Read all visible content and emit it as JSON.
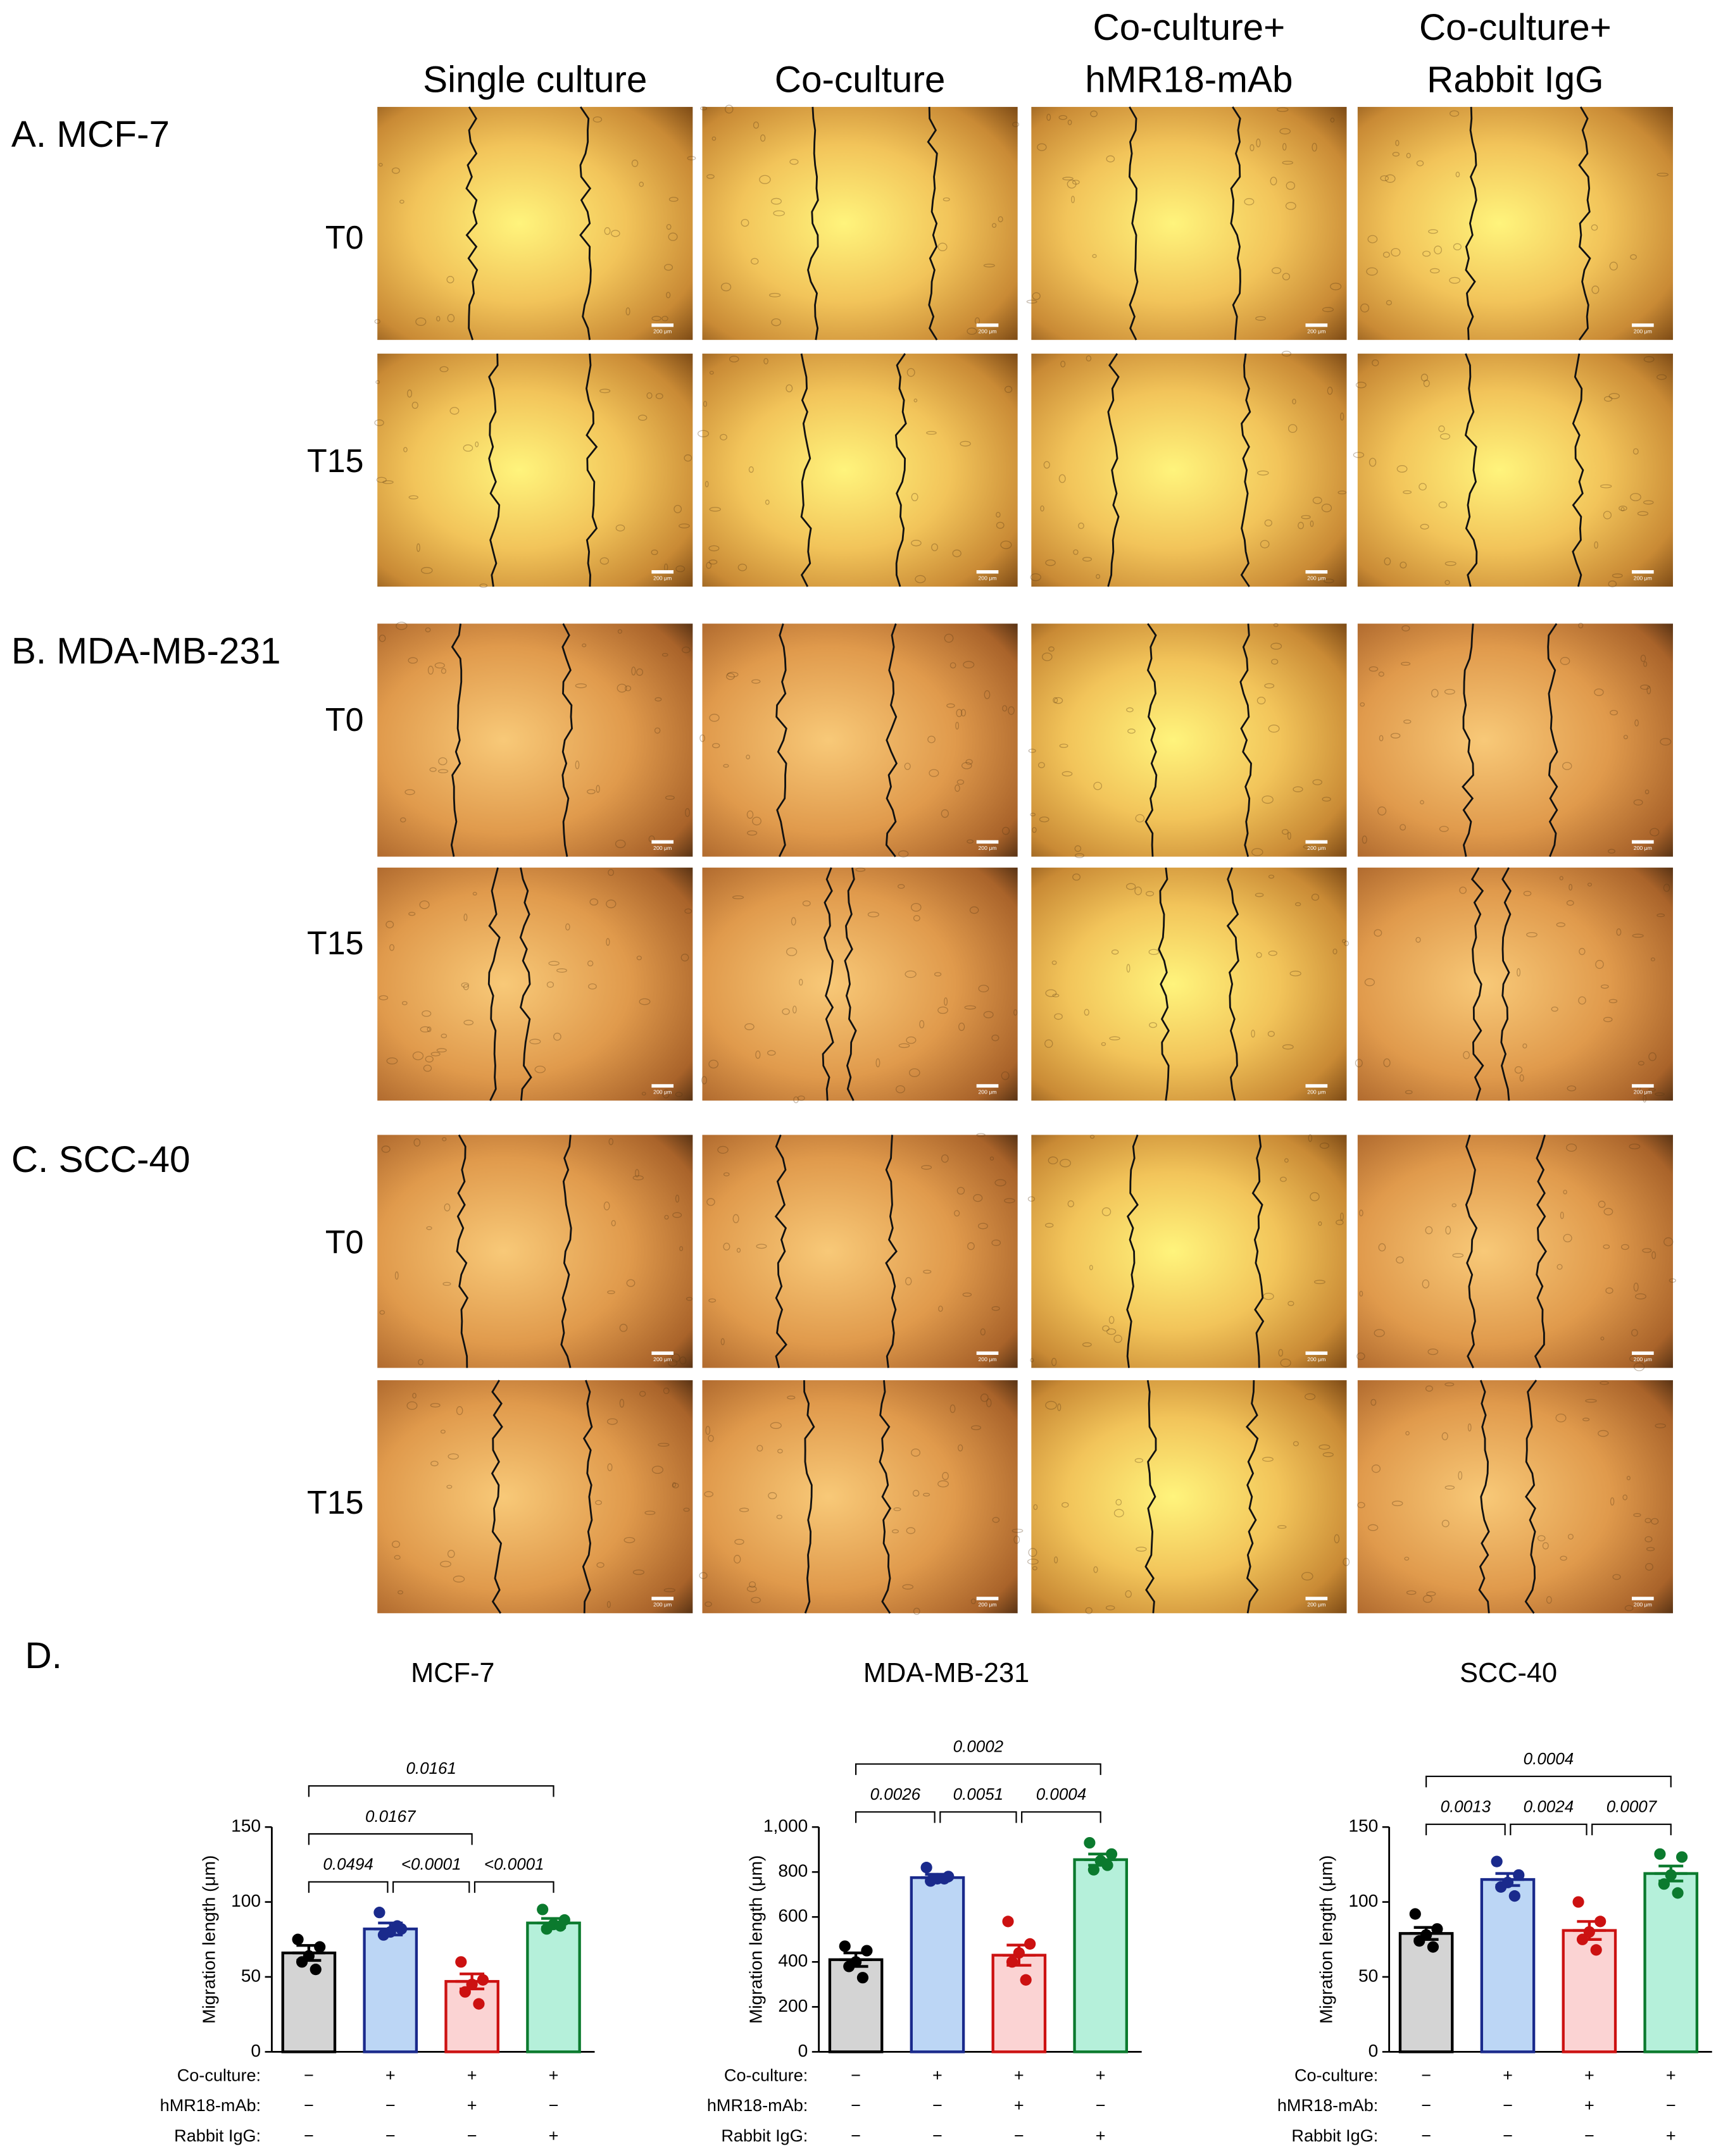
{
  "figure": {
    "column_headers": [
      [
        "Single culture"
      ],
      [
        "Co-culture"
      ],
      [
        "Co-culture+",
        "hMR18-mAb"
      ],
      [
        "Co-culture+",
        "Rabbit IgG"
      ]
    ],
    "sections": [
      {
        "label": "A. MCF-7",
        "rows": [
          "T0",
          "T15"
        ]
      },
      {
        "label": "B. MDA-MB-231",
        "rows": [
          "T0",
          "T15"
        ]
      },
      {
        "label": "C. SCC-40",
        "rows": [
          "T0",
          "T15"
        ]
      }
    ],
    "scale_bar": "200 μm",
    "panel_d_label": "D."
  },
  "chart_data": [
    {
      "type": "bar",
      "title": "MCF-7",
      "ylabel": "Migration length (μm)",
      "ylim": [
        0,
        150
      ],
      "yticks": [
        0,
        50,
        100,
        150
      ],
      "values": [
        66,
        82,
        47,
        86
      ],
      "errors": [
        5,
        4,
        5,
        3
      ],
      "points": [
        [
          75,
          70,
          64,
          60,
          55
        ],
        [
          93,
          82,
          80,
          78,
          84
        ],
        [
          60,
          48,
          45,
          40,
          32
        ],
        [
          95,
          88,
          85,
          82,
          84
        ]
      ],
      "colors": [
        "#000000",
        "#1a2a8c",
        "#cc1111",
        "#0b7a2e"
      ],
      "fill_colors": [
        "#d4d4d4",
        "#bcd6f5",
        "#fbd3d3",
        "#b5f0da"
      ],
      "conditions": [
        {
          "label": "Co-culture:",
          "marks": [
            "−",
            "+",
            "+",
            "+"
          ]
        },
        {
          "label": "hMR18-mAb:",
          "marks": [
            "−",
            "−",
            "+",
            "−"
          ]
        },
        {
          "label": "Rabbit IgG:",
          "marks": [
            "−",
            "−",
            "−",
            "+"
          ]
        }
      ],
      "comparisons": [
        {
          "from": 0,
          "to": 1,
          "label": "0.0494"
        },
        {
          "from": 1,
          "to": 2,
          "label": "<0.0001"
        },
        {
          "from": 2,
          "to": 3,
          "label": "<0.0001"
        },
        {
          "from": 0,
          "to": 2,
          "label": "0.0167"
        },
        {
          "from": 0,
          "to": 3,
          "label": "0.0161"
        }
      ]
    },
    {
      "type": "bar",
      "title": "MDA-MB-231",
      "ylabel": "Migration length (μm)",
      "ylim": [
        0,
        1000
      ],
      "yticks": [
        0,
        200,
        400,
        600,
        800,
        {
          "value": 1000,
          "label": "1,000"
        }
      ],
      "values": [
        410,
        775,
        430,
        855
      ],
      "errors": [
        30,
        15,
        45,
        25
      ],
      "points": [
        [
          470,
          450,
          400,
          380,
          330
        ],
        [
          820,
          780,
          770,
          760,
          770
        ],
        [
          580,
          480,
          440,
          400,
          320
        ],
        [
          930,
          880,
          850,
          810,
          830
        ]
      ],
      "colors": [
        "#000000",
        "#1a2a8c",
        "#cc1111",
        "#0b7a2e"
      ],
      "fill_colors": [
        "#d4d4d4",
        "#bcd6f5",
        "#fbd3d3",
        "#b5f0da"
      ],
      "conditions": [
        {
          "label": "Co-culture:",
          "marks": [
            "−",
            "+",
            "+",
            "+"
          ]
        },
        {
          "label": "hMR18-mAb:",
          "marks": [
            "−",
            "−",
            "+",
            "−"
          ]
        },
        {
          "label": "Rabbit IgG:",
          "marks": [
            "−",
            "−",
            "−",
            "+"
          ]
        }
      ],
      "comparisons": [
        {
          "from": 0,
          "to": 1,
          "label": "0.0026"
        },
        {
          "from": 1,
          "to": 2,
          "label": "0.0051"
        },
        {
          "from": 2,
          "to": 3,
          "label": "0.0004"
        },
        {
          "from": 0,
          "to": 3,
          "label": "0.0002"
        }
      ]
    },
    {
      "type": "bar",
      "title": "SCC-40",
      "ylabel": "Migration length (μm)",
      "ylim": [
        0,
        150
      ],
      "yticks": [
        0,
        50,
        100,
        150
      ],
      "values": [
        79,
        115,
        81,
        119
      ],
      "errors": [
        4,
        4,
        6,
        5
      ],
      "points": [
        [
          92,
          82,
          78,
          74,
          70
        ],
        [
          127,
          118,
          113,
          110,
          104
        ],
        [
          100,
          87,
          80,
          75,
          68
        ],
        [
          132,
          130,
          118,
          112,
          106
        ]
      ],
      "colors": [
        "#000000",
        "#1a2a8c",
        "#cc1111",
        "#0b7a2e"
      ],
      "fill_colors": [
        "#d4d4d4",
        "#bcd6f5",
        "#fbd3d3",
        "#b5f0da"
      ],
      "conditions": [
        {
          "label": "Co-culture:",
          "marks": [
            "−",
            "+",
            "+",
            "+"
          ]
        },
        {
          "label": "hMR18-mAb:",
          "marks": [
            "−",
            "−",
            "+",
            "−"
          ]
        },
        {
          "label": "Rabbit IgG:",
          "marks": [
            "−",
            "−",
            "−",
            "+"
          ]
        }
      ],
      "comparisons": [
        {
          "from": 0,
          "to": 1,
          "label": "0.0013"
        },
        {
          "from": 1,
          "to": 2,
          "label": "0.0024"
        },
        {
          "from": 2,
          "to": 3,
          "label": "0.0007"
        },
        {
          "from": 0,
          "to": 3,
          "label": "0.0004"
        }
      ]
    }
  ]
}
